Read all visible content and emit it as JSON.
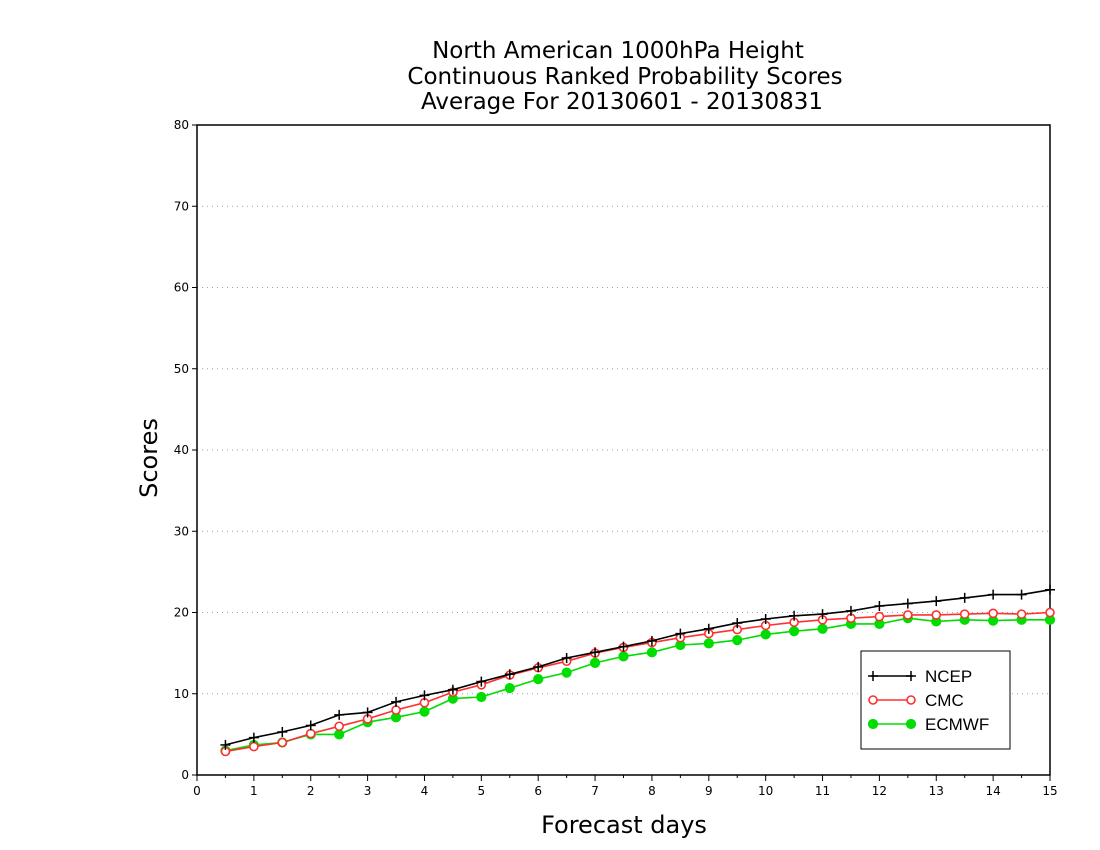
{
  "chart_data": {
    "type": "line",
    "title": [
      "North American 1000hPa Height",
      "Continuous Ranked Probability Scores",
      "Average For 20130601 - 20130831"
    ],
    "xlabel": "Forecast days",
    "ylabel": "Scores",
    "xlim": [
      0,
      15
    ],
    "ylim": [
      0,
      80
    ],
    "xticks": [
      "0",
      "1",
      "2",
      "3",
      "4",
      "5",
      "6",
      "7",
      "8",
      "9",
      "10",
      "11",
      "12",
      "13",
      "14",
      "15"
    ],
    "yticks": [
      "0",
      "10",
      "20",
      "30",
      "40",
      "50",
      "60",
      "70",
      "80"
    ],
    "grid": "horizontal dotted",
    "legend_position": "bottom-right",
    "x": [
      0.5,
      1,
      1.5,
      2,
      2.5,
      3,
      3.5,
      4,
      4.5,
      5,
      5.5,
      6,
      6.5,
      7,
      7.5,
      8,
      8.5,
      9,
      9.5,
      10,
      10.5,
      11,
      11.5,
      12,
      12.5,
      13,
      13.5,
      14,
      14.5,
      15
    ],
    "series": [
      {
        "name": "NCEP",
        "color": "#000000",
        "marker": "plus",
        "values": [
          3.7,
          4.6,
          5.3,
          6.1,
          7.4,
          7.7,
          9.0,
          9.8,
          10.5,
          11.5,
          12.4,
          13.3,
          14.4,
          15.1,
          15.8,
          16.5,
          17.4,
          18.0,
          18.7,
          19.2,
          19.6,
          19.8,
          20.2,
          20.8,
          21.1,
          21.4,
          21.8,
          22.2,
          22.2,
          22.8
        ]
      },
      {
        "name": "CMC",
        "color": "#ff3030",
        "marker": "open-circle",
        "values": [
          2.9,
          3.5,
          4.0,
          5.1,
          6.0,
          6.9,
          8.0,
          8.9,
          10.2,
          11.1,
          12.3,
          13.2,
          14.0,
          15.0,
          15.7,
          16.3,
          16.9,
          17.4,
          17.9,
          18.4,
          18.8,
          19.1,
          19.3,
          19.5,
          19.7,
          19.7,
          19.8,
          19.9,
          19.8,
          20.0
        ]
      },
      {
        "name": "ECMWF",
        "color": "#00dd00",
        "marker": "filled-circle",
        "values": [
          3.0,
          3.7,
          4.0,
          5.0,
          5.0,
          6.5,
          7.1,
          7.8,
          9.4,
          9.6,
          10.7,
          11.8,
          12.6,
          13.8,
          14.6,
          15.1,
          16.0,
          16.2,
          16.6,
          17.3,
          17.7,
          18.0,
          18.6,
          18.6,
          19.3,
          18.9,
          19.1,
          19.0,
          19.1,
          19.1
        ]
      }
    ]
  }
}
